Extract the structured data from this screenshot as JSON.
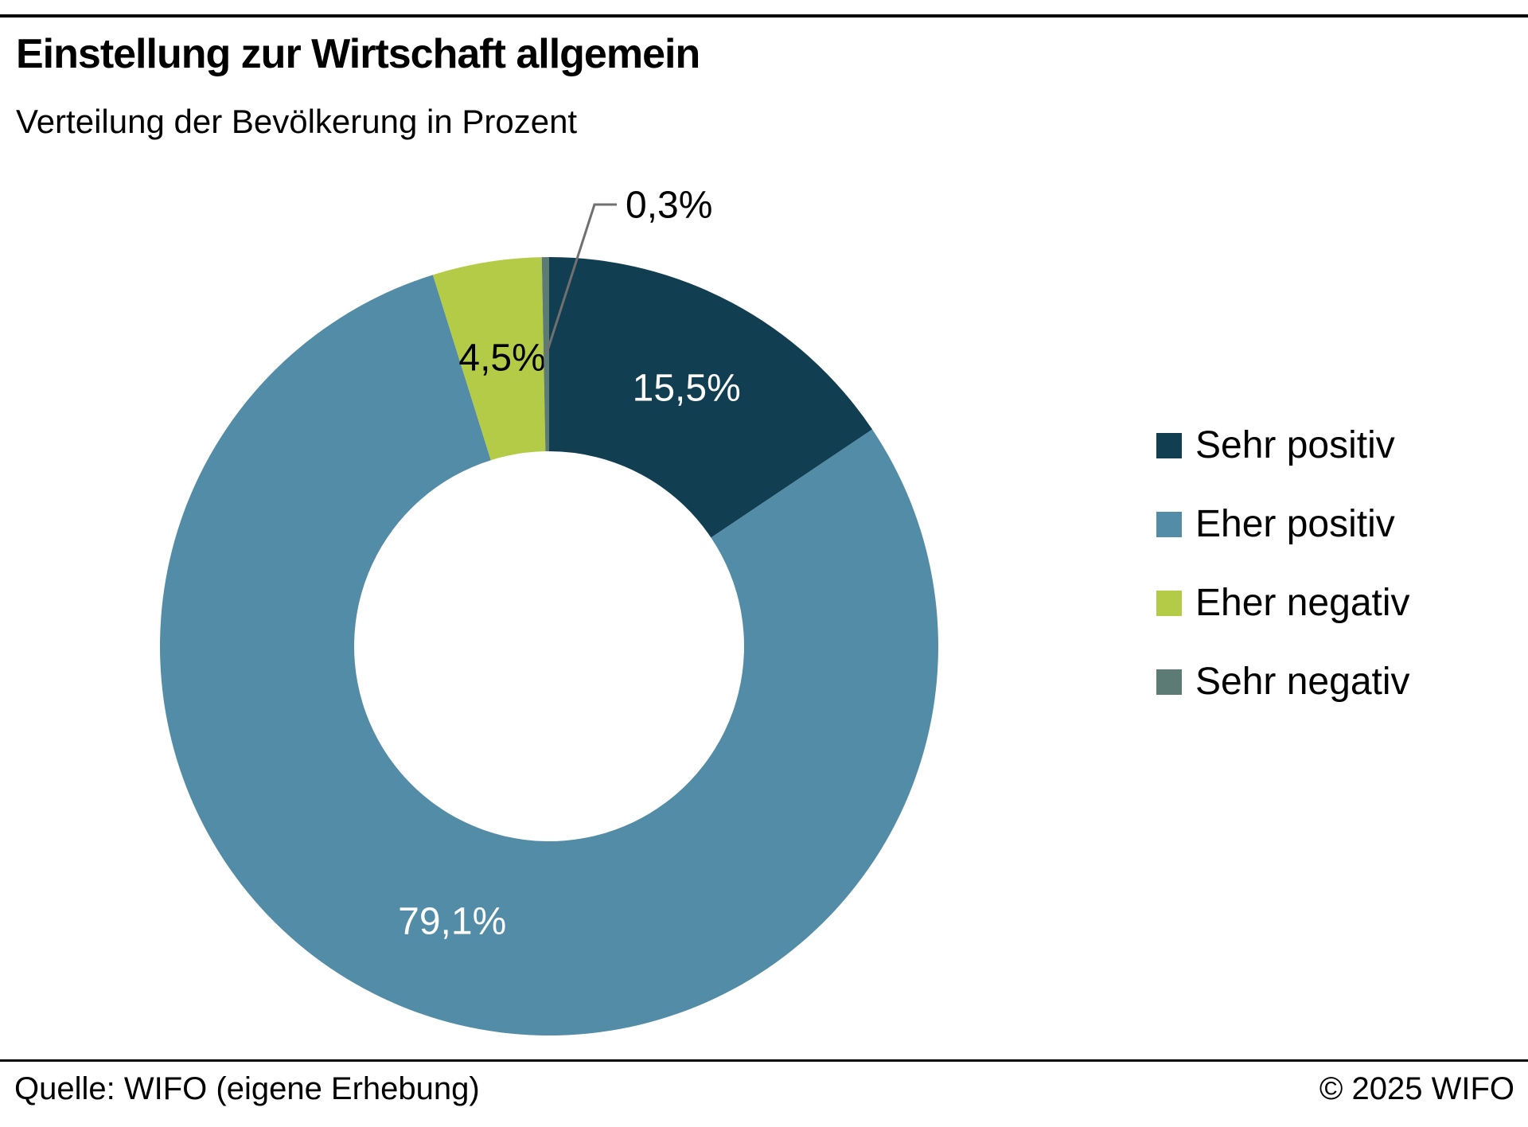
{
  "header": {
    "title": "Einstellung zur Wirtschaft allgemein",
    "subtitle": "Verteilung der Bevölkerung in Prozent"
  },
  "chart_data": {
    "type": "pie",
    "subtype": "donut",
    "title": "Einstellung zur Wirtschaft allgemein",
    "unit": "Prozent",
    "start_angle_deg": 0,
    "direction": "clockwise",
    "legend_position": "right",
    "leader_line_color": "#707070",
    "categories": [
      "Sehr positiv",
      "Eher positiv",
      "Eher negativ",
      "Sehr negativ"
    ],
    "values": [
      15.5,
      79.1,
      4.5,
      0.3
    ],
    "segments": [
      {
        "label": "Sehr positiv",
        "value": 15.5,
        "display": "15,5%",
        "color": "#123E52",
        "text_color": "#ffffff",
        "label_style": "inside"
      },
      {
        "label": "Eher positiv",
        "value": 79.1,
        "display": "79,1%",
        "color": "#528CA6",
        "text_color": "#ffffff",
        "label_style": "inside"
      },
      {
        "label": "Eher negativ",
        "value": 4.5,
        "display": "4,5%",
        "color": "#B4CB48",
        "text_color": "#000000",
        "label_style": "inside"
      },
      {
        "label": "Sehr negativ",
        "value": 0.3,
        "display": "0,3%",
        "color": "#5C7B74",
        "text_color": "#000000",
        "label_style": "leader"
      }
    ]
  },
  "footer": {
    "source": "Quelle: WIFO (eigene Erhebung)",
    "copyright": "© 2025 WIFO"
  }
}
